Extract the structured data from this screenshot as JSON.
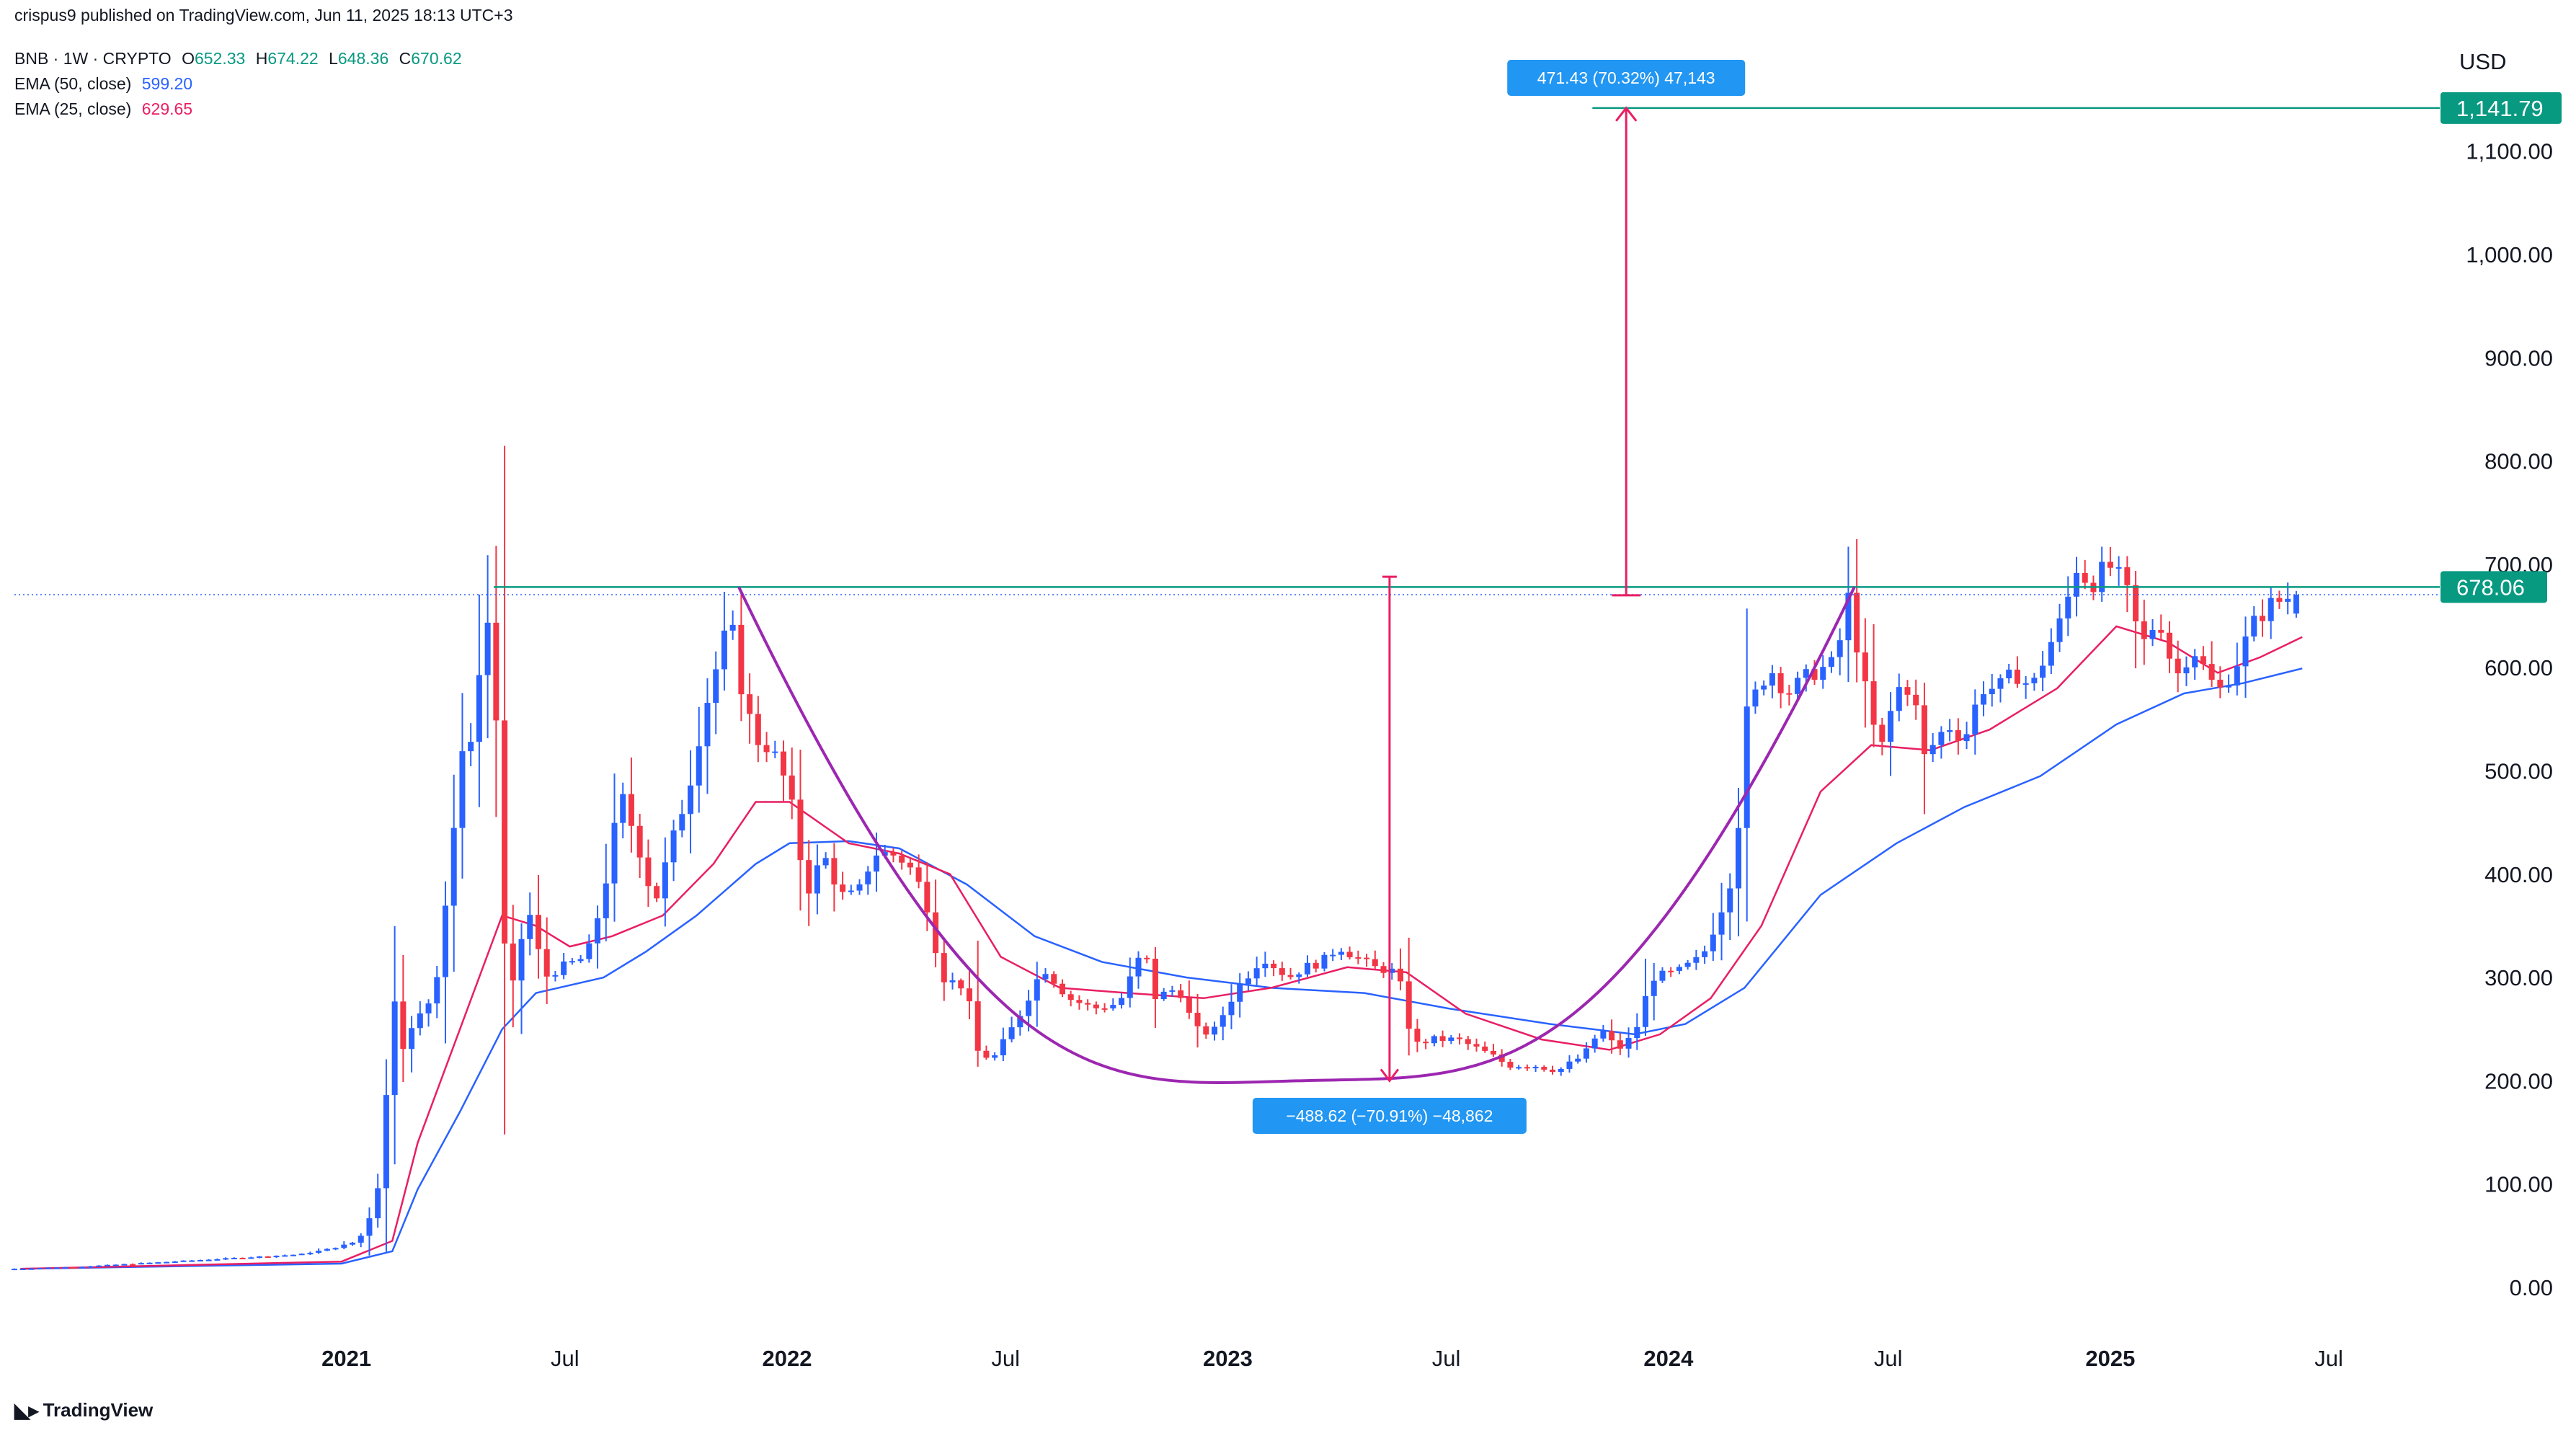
{
  "header": {
    "published": "crispus9 published on TradingView.com, Jun 11, 2025 18:13 UTC+3"
  },
  "legend": {
    "symbol": "BNB · 1W · CRYPTO",
    "o_label": "O",
    "o_value": "652.33",
    "h_label": "H",
    "h_value": "674.22",
    "l_label": "L",
    "l_value": "648.36",
    "c_label": "C",
    "c_value": "670.62",
    "ema50_label": "EMA (50, close)",
    "ema50_value": "599.20",
    "ema25_label": "EMA (25, close)",
    "ema25_value": "629.65"
  },
  "currency": "USD",
  "price_tags": {
    "target": "1,141.79",
    "current": "678.06"
  },
  "measure_labels": {
    "up": "471.43 (70.32%) 47,143",
    "down": "−488.62 (−70.91%) −48,862"
  },
  "watermark": "TradingView",
  "colors": {
    "up": "#2962ff",
    "down": "#f23645",
    "ema50": "#2962ff",
    "ema25": "#e91e63",
    "resistance": "#089981",
    "cup": "#9c27b0",
    "measure": "#e91e63",
    "tag_green": "#089981",
    "tag_blue": "#2196f3"
  },
  "chart_data": {
    "type": "candlestick",
    "title": "BNB · 1W · CRYPTO",
    "ylabel": "USD",
    "ylim": [
      -20,
      1180
    ],
    "y_ticks": [
      0,
      100,
      200,
      300,
      400,
      500,
      600,
      700,
      800,
      900,
      1000,
      1100
    ],
    "y_tick_labels": [
      "0.00",
      "100.00",
      "200.00",
      "300.00",
      "400.00",
      "500.00",
      "600.00",
      "700.00",
      "800.00",
      "900.00",
      "1,000.00",
      "1,100.00"
    ],
    "x_ticks": [
      {
        "label": "2021",
        "date": "2021-01-01",
        "bold": true
      },
      {
        "label": "Jul",
        "date": "2021-07-01",
        "bold": false
      },
      {
        "label": "2022",
        "date": "2022-01-01",
        "bold": true
      },
      {
        "label": "Jul",
        "date": "2022-07-01",
        "bold": false
      },
      {
        "label": "2023",
        "date": "2023-01-01",
        "bold": true
      },
      {
        "label": "Jul",
        "date": "2023-07-01",
        "bold": false
      },
      {
        "label": "2024",
        "date": "2024-01-01",
        "bold": true
      },
      {
        "label": "Jul",
        "date": "2024-07-01",
        "bold": false
      },
      {
        "label": "2025",
        "date": "2025-01-01",
        "bold": true
      },
      {
        "label": "Jul",
        "date": "2025-07-01",
        "bold": false
      }
    ],
    "xlim": [
      "2020-04-01",
      "2025-09-07"
    ],
    "price_points": [
      [
        "2020-04-06",
        18
      ],
      [
        "2020-06-01",
        20
      ],
      [
        "2020-08-01",
        24
      ],
      [
        "2020-10-01",
        28
      ],
      [
        "2020-12-01",
        32
      ],
      [
        "2020-12-28",
        38
      ],
      [
        "2021-01-18",
        45
      ],
      [
        "2021-02-01",
        80
      ],
      [
        "2021-02-08",
        140
      ],
      [
        "2021-02-15",
        300
      ],
      [
        "2021-02-22",
        230
      ],
      [
        "2021-03-08",
        260
      ],
      [
        "2021-03-22",
        285
      ],
      [
        "2021-04-05",
        420
      ],
      [
        "2021-04-12",
        510
      ],
      [
        "2021-04-19",
        520
      ],
      [
        "2021-04-26",
        570
      ],
      [
        "2021-05-03",
        650
      ],
      [
        "2021-05-10",
        630
      ],
      [
        "2021-05-17",
        350
      ],
      [
        "2021-05-24",
        280
      ],
      [
        "2021-06-07",
        370
      ],
      [
        "2021-06-21",
        300
      ],
      [
        "2021-07-05",
        310
      ],
      [
        "2021-07-26",
        320
      ],
      [
        "2021-08-09",
        380
      ],
      [
        "2021-08-23",
        480
      ],
      [
        "2021-09-06",
        430
      ],
      [
        "2021-09-20",
        370
      ],
      [
        "2021-10-04",
        430
      ],
      [
        "2021-10-18",
        480
      ],
      [
        "2021-11-01",
        560
      ],
      [
        "2021-11-15",
        620
      ],
      [
        "2021-11-22",
        650
      ],
      [
        "2021-11-29",
        590
      ],
      [
        "2021-12-13",
        530
      ],
      [
        "2021-12-27",
        520
      ],
      [
        "2022-01-10",
        480
      ],
      [
        "2022-01-24",
        380
      ],
      [
        "2022-02-07",
        420
      ],
      [
        "2022-02-21",
        380
      ],
      [
        "2022-03-07",
        380
      ],
      [
        "2022-03-21",
        420
      ],
      [
        "2022-04-04",
        420
      ],
      [
        "2022-04-18",
        410
      ],
      [
        "2022-05-02",
        380
      ],
      [
        "2022-05-16",
        300
      ],
      [
        "2022-06-06",
        290
      ],
      [
        "2022-06-13",
        230
      ],
      [
        "2022-06-27",
        220
      ],
      [
        "2022-07-18",
        260
      ],
      [
        "2022-08-08",
        310
      ],
      [
        "2022-08-29",
        280
      ],
      [
        "2022-09-19",
        270
      ],
      [
        "2022-10-10",
        275
      ],
      [
        "2022-10-31",
        330
      ],
      [
        "2022-11-07",
        280
      ],
      [
        "2022-11-28",
        290
      ],
      [
        "2022-12-12",
        250
      ],
      [
        "2022-12-26",
        245
      ],
      [
        "2023-01-16",
        290
      ],
      [
        "2023-02-06",
        320
      ],
      [
        "2023-02-27",
        300
      ],
      [
        "2023-03-13",
        310
      ],
      [
        "2023-03-27",
        315
      ],
      [
        "2023-04-10",
        330
      ],
      [
        "2023-04-24",
        320
      ],
      [
        "2023-05-08",
        310
      ],
      [
        "2023-05-29",
        305
      ],
      [
        "2023-06-05",
        260
      ],
      [
        "2023-06-12",
        235
      ],
      [
        "2023-06-26",
        240
      ],
      [
        "2023-07-17",
        240
      ],
      [
        "2023-08-14",
        225
      ],
      [
        "2023-08-28",
        215
      ],
      [
        "2023-09-18",
        215
      ],
      [
        "2023-10-09",
        210
      ],
      [
        "2023-10-30",
        225
      ],
      [
        "2023-11-13",
        250
      ],
      [
        "2023-11-27",
        230
      ],
      [
        "2023-12-11",
        245
      ],
      [
        "2023-12-25",
        300
      ],
      [
        "2024-01-15",
        305
      ],
      [
        "2024-02-05",
        320
      ],
      [
        "2024-02-19",
        360
      ],
      [
        "2024-03-04",
        410
      ],
      [
        "2024-03-11",
        550
      ],
      [
        "2024-03-18",
        570
      ],
      [
        "2024-04-01",
        600
      ],
      [
        "2024-04-15",
        575
      ],
      [
        "2024-05-06",
        595
      ],
      [
        "2024-05-27",
        605
      ],
      [
        "2024-06-03",
        680
      ],
      [
        "2024-06-17",
        590
      ],
      [
        "2024-07-01",
        515
      ],
      [
        "2024-07-15",
        580
      ],
      [
        "2024-07-29",
        580
      ],
      [
        "2024-08-05",
        510
      ],
      [
        "2024-08-26",
        545
      ],
      [
        "2024-09-09",
        530
      ],
      [
        "2024-09-23",
        580
      ],
      [
        "2024-10-07",
        580
      ],
      [
        "2024-10-21",
        595
      ],
      [
        "2024-11-04",
        580
      ],
      [
        "2024-11-18",
        620
      ],
      [
        "2024-12-02",
        655
      ],
      [
        "2024-12-09",
        700
      ],
      [
        "2024-12-23",
        680
      ],
      [
        "2025-01-06",
        700
      ],
      [
        "2025-01-20",
        680
      ],
      [
        "2025-02-03",
        620
      ],
      [
        "2025-02-17",
        650
      ],
      [
        "2025-03-03",
        590
      ],
      [
        "2025-03-17",
        620
      ],
      [
        "2025-03-31",
        590
      ],
      [
        "2025-04-07",
        575
      ],
      [
        "2025-04-21",
        600
      ],
      [
        "2025-05-05",
        640
      ],
      [
        "2025-05-19",
        660
      ],
      [
        "2025-06-09",
        670.62
      ]
    ],
    "last_candle": {
      "date": "2025-06-09",
      "open": 652.33,
      "high": 674.22,
      "low": 648.36,
      "close": 670.62
    },
    "ema50_points": [
      [
        "2020-04-06",
        18
      ],
      [
        "2020-12-28",
        23
      ],
      [
        "2021-02-08",
        35
      ],
      [
        "2021-03-01",
        95
      ],
      [
        "2021-04-05",
        170
      ],
      [
        "2021-05-10",
        250
      ],
      [
        "2021-06-07",
        285
      ],
      [
        "2021-08-02",
        300
      ],
      [
        "2021-09-06",
        325
      ],
      [
        "2021-10-18",
        360
      ],
      [
        "2021-12-06",
        410
      ],
      [
        "2022-01-03",
        430
      ],
      [
        "2022-02-21",
        432
      ],
      [
        "2022-04-04",
        425
      ],
      [
        "2022-05-30",
        390
      ],
      [
        "2022-07-25",
        340
      ],
      [
        "2022-09-19",
        315
      ],
      [
        "2022-11-28",
        300
      ],
      [
        "2023-02-06",
        290
      ],
      [
        "2023-04-24",
        285
      ],
      [
        "2023-07-03",
        270
      ],
      [
        "2023-09-25",
        255
      ],
      [
        "2023-12-04",
        245
      ],
      [
        "2024-01-15",
        255
      ],
      [
        "2024-03-04",
        290
      ],
      [
        "2024-05-06",
        380
      ],
      [
        "2024-07-08",
        430
      ],
      [
        "2024-09-02",
        465
      ],
      [
        "2024-11-04",
        495
      ],
      [
        "2025-01-06",
        545
      ],
      [
        "2025-03-03",
        575
      ],
      [
        "2025-04-21",
        585
      ],
      [
        "2025-06-09",
        599.2
      ]
    ],
    "ema25_points": [
      [
        "2020-04-06",
        18
      ],
      [
        "2020-12-28",
        25
      ],
      [
        "2021-02-08",
        45
      ],
      [
        "2021-03-01",
        140
      ],
      [
        "2021-04-05",
        250
      ],
      [
        "2021-05-10",
        360
      ],
      [
        "2021-06-07",
        350
      ],
      [
        "2021-07-05",
        330
      ],
      [
        "2021-08-09",
        340
      ],
      [
        "2021-09-20",
        360
      ],
      [
        "2021-11-01",
        410
      ],
      [
        "2021-12-06",
        470
      ],
      [
        "2022-01-03",
        470
      ],
      [
        "2022-02-21",
        430
      ],
      [
        "2022-04-04",
        420
      ],
      [
        "2022-05-16",
        400
      ],
      [
        "2022-06-27",
        320
      ],
      [
        "2022-08-15",
        290
      ],
      [
        "2022-10-10",
        285
      ],
      [
        "2022-12-12",
        280
      ],
      [
        "2023-02-06",
        290
      ],
      [
        "2023-04-10",
        310
      ],
      [
        "2023-05-29",
        305
      ],
      [
        "2023-07-17",
        265
      ],
      [
        "2023-09-18",
        240
      ],
      [
        "2023-11-13",
        230
      ],
      [
        "2023-12-25",
        245
      ],
      [
        "2024-02-05",
        280
      ],
      [
        "2024-03-18",
        350
      ],
      [
        "2024-05-06",
        480
      ],
      [
        "2024-06-17",
        525
      ],
      [
        "2024-08-05",
        520
      ],
      [
        "2024-09-23",
        540
      ],
      [
        "2024-11-18",
        580
      ],
      [
        "2025-01-06",
        640
      ],
      [
        "2025-02-17",
        625
      ],
      [
        "2025-03-31",
        595
      ],
      [
        "2025-05-05",
        610
      ],
      [
        "2025-06-09",
        629.65
      ]
    ],
    "annotations": {
      "resistance_level": 678.06,
      "resistance_from": "2021-05-03",
      "cup_bottom": 200,
      "cup_start": [
        "2021-11-22",
        678
      ],
      "cup_end": [
        "2024-06-03",
        678
      ],
      "target_level": 1141.79,
      "target_from": "2023-10-30",
      "measure_down_date": "2023-05-15",
      "measure_down_from": 688,
      "measure_down_to": 200,
      "measure_up_date": "2023-11-27",
      "measure_up_from": 670,
      "measure_up_to": 1141.79,
      "current_price": 670.62
    }
  }
}
